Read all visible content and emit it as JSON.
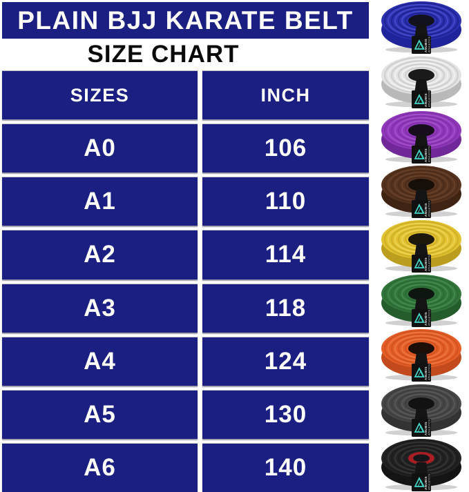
{
  "title": "PLAIN BJJ KARATE BELT",
  "subtitle": "SIZE CHART",
  "colors": {
    "primary_blue": "#1b1f82",
    "title_text": "#ffffff",
    "subtitle_text": "#0a0a0a",
    "tag_teal": "#45d6c8",
    "tag_black": "#111111"
  },
  "table": {
    "headers": [
      "SIZES",
      "INCH"
    ],
    "rows": [
      {
        "size": "A0",
        "inch": "106"
      },
      {
        "size": "A1",
        "inch": "110"
      },
      {
        "size": "A2",
        "inch": "114"
      },
      {
        "size": "A3",
        "inch": "118"
      },
      {
        "size": "A4",
        "inch": "124"
      },
      {
        "size": "A5",
        "inch": "130"
      },
      {
        "size": "A6",
        "inch": "140"
      }
    ]
  },
  "chart_data": {
    "type": "table",
    "title": "PLAIN BJJ KARATE BELT",
    "subtitle": "SIZE CHART",
    "columns": [
      "SIZES",
      "INCH"
    ],
    "rows": [
      [
        "A0",
        106
      ],
      [
        "A1",
        110
      ],
      [
        "A2",
        114
      ],
      [
        "A3",
        118
      ],
      [
        "A4",
        124
      ],
      [
        "A5",
        130
      ],
      [
        "A6",
        140
      ]
    ]
  },
  "tag": {
    "brand_line1": "ANUBIS",
    "brand_line2": "ATHLETICS"
  },
  "belts": [
    {
      "name": "blue",
      "color_top": "#2c31b2",
      "color_side": "#20249a",
      "ring_light": "#4d52d0",
      "ring_dark": "#1a1d84",
      "hole": "#12121f",
      "hole_ring": null
    },
    {
      "name": "white",
      "color_top": "#e3e3e3",
      "color_side": "#b9b9b9",
      "ring_light": "#f6f6f6",
      "ring_dark": "#c4c4c4",
      "hole": "#1a1a1a",
      "hole_ring": null
    },
    {
      "name": "purple",
      "color_top": "#9138bb",
      "color_side": "#71299a",
      "ring_light": "#a958d0",
      "ring_dark": "#7c2da5",
      "hole": "#170d1d",
      "hole_ring": null
    },
    {
      "name": "brown",
      "color_top": "#573420",
      "color_side": "#3f2414",
      "ring_light": "#6d4429",
      "ring_dark": "#472916",
      "hole": "#160e08",
      "hole_ring": null
    },
    {
      "name": "yellow",
      "color_top": "#e2c230",
      "color_side": "#bb9e20",
      "ring_light": "#f1d95e",
      "ring_dark": "#c7a823",
      "hole": "#1d180a",
      "hole_ring": null
    },
    {
      "name": "green",
      "color_top": "#33763c",
      "color_side": "#245c2c",
      "ring_light": "#4a9154",
      "ring_dark": "#2a6632",
      "hole": "#0d170f",
      "hole_ring": null
    },
    {
      "name": "orange",
      "color_top": "#e55e27",
      "color_side": "#c24a1c",
      "ring_light": "#f07d47",
      "ring_dark": "#cc4f1e",
      "hole": "#1d0f08",
      "hole_ring": null
    },
    {
      "name": "gray",
      "color_top": "#474747",
      "color_side": "#333333",
      "ring_light": "#5e5e5e",
      "ring_dark": "#3a3a3a",
      "hole": "#121212",
      "hole_ring": null
    },
    {
      "name": "black",
      "color_top": "#232323",
      "color_side": "#141414",
      "ring_light": "#3b3b3b",
      "ring_dark": "#1a1a1a",
      "hole": "#15151a",
      "hole_ring": "#a81e24"
    }
  ]
}
